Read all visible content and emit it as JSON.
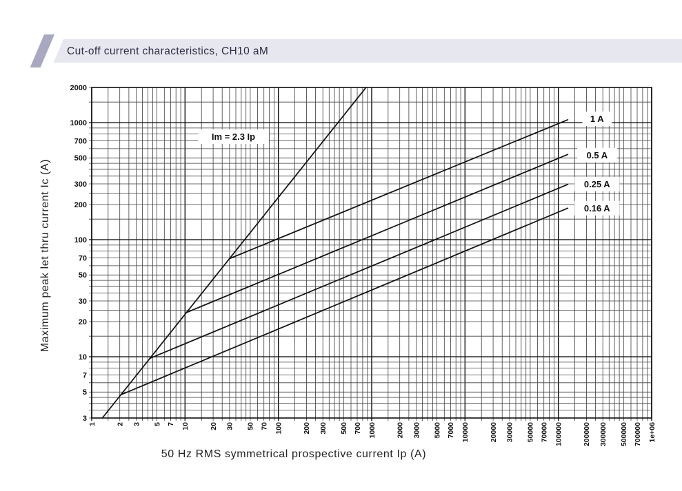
{
  "header": {
    "title": "Cut-off current characteristics, CH10 aM",
    "bar_color": "#e7e7f0",
    "accent_color": "#a8a8c1",
    "text_color": "#2e2e46"
  },
  "chart_data": {
    "type": "line",
    "title": "Cut-off current characteristics, CH10 aM",
    "x_scale": "log",
    "y_scale": "log",
    "xlim": [
      1,
      1000000
    ],
    "ylim": [
      3,
      2000
    ],
    "xlabel": "50 Hz RMS symmetrical prospective current Ip (A)",
    "ylabel": "Maximum peak let thru current Ic (A)",
    "grid": true,
    "grid_steps": [
      1,
      1.5,
      2,
      2.5,
      3,
      3.5,
      4,
      4.5,
      5,
      6,
      7,
      8,
      9
    ],
    "line_color": "#161616",
    "x_ticks": [
      {
        "v": 1,
        "label": "1"
      },
      {
        "v": 2,
        "label": "2"
      },
      {
        "v": 3,
        "label": "3"
      },
      {
        "v": 5,
        "label": "5"
      },
      {
        "v": 7,
        "label": "7"
      },
      {
        "v": 10,
        "label": "10"
      },
      {
        "v": 20,
        "label": "20"
      },
      {
        "v": 30,
        "label": "30"
      },
      {
        "v": 50,
        "label": "50"
      },
      {
        "v": 70,
        "label": "70"
      },
      {
        "v": 100,
        "label": "100"
      },
      {
        "v": 200,
        "label": "200"
      },
      {
        "v": 300,
        "label": "300"
      },
      {
        "v": 500,
        "label": "500"
      },
      {
        "v": 700,
        "label": "700"
      },
      {
        "v": 1000,
        "label": "1000"
      },
      {
        "v": 2000,
        "label": "2000"
      },
      {
        "v": 3000,
        "label": "3000"
      },
      {
        "v": 5000,
        "label": "5000"
      },
      {
        "v": 7000,
        "label": "7000"
      },
      {
        "v": 10000,
        "label": "10000"
      },
      {
        "v": 20000,
        "label": "20000"
      },
      {
        "v": 30000,
        "label": "30000"
      },
      {
        "v": 50000,
        "label": "50000"
      },
      {
        "v": 70000,
        "label": "70000"
      },
      {
        "v": 100000,
        "label": "100000"
      },
      {
        "v": 200000,
        "label": "200000"
      },
      {
        "v": 300000,
        "label": "300000"
      },
      {
        "v": 500000,
        "label": "500000"
      },
      {
        "v": 700000,
        "label": "700000"
      },
      {
        "v": 1000000,
        "label": "1e+06"
      }
    ],
    "y_ticks": [
      {
        "v": 2000,
        "label": "2000"
      },
      {
        "v": 1000,
        "label": "1000"
      },
      {
        "v": 700,
        "label": "700"
      },
      {
        "v": 500,
        "label": "500"
      },
      {
        "v": 300,
        "label": "300"
      },
      {
        "v": 200,
        "label": "200"
      },
      {
        "v": 100,
        "label": "100"
      },
      {
        "v": 70,
        "label": "70"
      },
      {
        "v": 50,
        "label": "50"
      },
      {
        "v": 30,
        "label": "30"
      },
      {
        "v": 20,
        "label": "20"
      },
      {
        "v": 10,
        "label": "10"
      },
      {
        "v": 7,
        "label": "7"
      },
      {
        "v": 5,
        "label": "5"
      },
      {
        "v": 3,
        "label": "3"
      }
    ],
    "series": [
      {
        "name": "Im = 2.3 Ip",
        "points": [
          [
            1.3,
            3
          ],
          [
            870,
            2000
          ]
        ],
        "label": {
          "text": "Im = 2.3 Ip",
          "x": 33,
          "y": 760,
          "boxed": true
        }
      },
      {
        "name": "1 A",
        "points": [
          [
            30,
            69
          ],
          [
            126000,
            1060
          ]
        ],
        "label": {
          "text": "1 A",
          "x": 260000,
          "y": 1080,
          "boxed": true
        }
      },
      {
        "name": "0.5 A",
        "points": [
          [
            10.5,
            24
          ],
          [
            126000,
            535
          ]
        ],
        "label": {
          "text": "0.5 A",
          "x": 260000,
          "y": 528,
          "boxed": true
        }
      },
      {
        "name": "0.25 A",
        "points": [
          [
            4.2,
            9.7
          ],
          [
            126000,
            297
          ]
        ],
        "label": {
          "text": "0.25 A",
          "x": 260000,
          "y": 299,
          "boxed": true
        }
      },
      {
        "name": "0.16 A",
        "points": [
          [
            2,
            4.7
          ],
          [
            126000,
            186
          ]
        ],
        "label": {
          "text": "0.16 A",
          "x": 260000,
          "y": 186,
          "boxed": true
        }
      }
    ]
  }
}
